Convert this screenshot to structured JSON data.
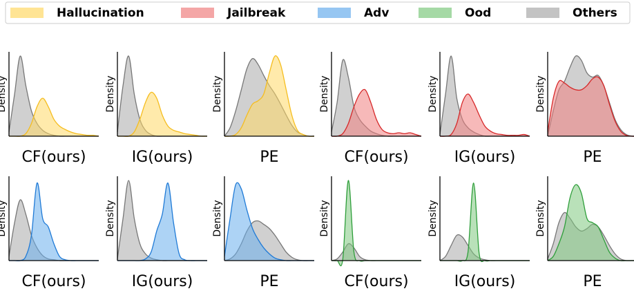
{
  "chart_data": [
    {
      "type": "area",
      "xlabel": "CF(ours)",
      "ylabel": "Density",
      "xlim": [
        0,
        16
      ],
      "ylim": [
        0,
        1
      ],
      "x": [
        0,
        1,
        2,
        3,
        4,
        5,
        6,
        7,
        8,
        9,
        10,
        11,
        12,
        13,
        14,
        15,
        16
      ],
      "series": [
        {
          "name": "Hallucination",
          "color": "#f5bd1f",
          "fill": "#ffd966",
          "values": [
            0,
            0,
            0,
            0.03,
            0.15,
            0.35,
            0.45,
            0.35,
            0.2,
            0.12,
            0.08,
            0.05,
            0.03,
            0.02,
            0.01,
            0.01,
            0
          ]
        },
        {
          "name": "Others",
          "color": "#777777",
          "fill": "#aaaaaa",
          "values": [
            0.05,
            0.5,
            0.95,
            0.6,
            0.3,
            0.15,
            0.07,
            0.03,
            0.01,
            0,
            0,
            0,
            0,
            0,
            0,
            0,
            0
          ]
        }
      ]
    },
    {
      "type": "area",
      "xlabel": "IG(ours)",
      "ylabel": "Density",
      "xlim": [
        0,
        16
      ],
      "ylim": [
        0,
        1
      ],
      "x": [
        0,
        1,
        2,
        3,
        4,
        5,
        6,
        7,
        8,
        9,
        10,
        11,
        12,
        13,
        14,
        15,
        16
      ],
      "series": [
        {
          "name": "Hallucination",
          "color": "#f5bd1f",
          "fill": "#ffd966",
          "values": [
            0,
            0,
            0,
            0.05,
            0.2,
            0.4,
            0.52,
            0.45,
            0.25,
            0.12,
            0.07,
            0.05,
            0.03,
            0.02,
            0.01,
            0,
            0
          ]
        },
        {
          "name": "Others",
          "color": "#777777",
          "fill": "#aaaaaa",
          "values": [
            0.05,
            0.6,
            0.95,
            0.5,
            0.2,
            0.07,
            0.02,
            0,
            0,
            0,
            0,
            0,
            0,
            0,
            0,
            0,
            0
          ]
        }
      ]
    },
    {
      "type": "area",
      "xlabel": "PE",
      "ylabel": "Density",
      "xlim": [
        0,
        16
      ],
      "ylim": [
        0,
        1
      ],
      "x": [
        0,
        1,
        2,
        3,
        4,
        5,
        6,
        7,
        8,
        9,
        10,
        11,
        12,
        13,
        14,
        15,
        16
      ],
      "series": [
        {
          "name": "Hallucination",
          "color": "#f5bd1f",
          "fill": "#ffd966",
          "values": [
            0,
            0,
            0.02,
            0.1,
            0.25,
            0.38,
            0.42,
            0.5,
            0.75,
            0.95,
            0.85,
            0.55,
            0.25,
            0.07,
            0.02,
            0,
            0
          ]
        },
        {
          "name": "Others",
          "color": "#777777",
          "fill": "#aaaaaa",
          "values": [
            0,
            0.1,
            0.3,
            0.55,
            0.8,
            0.92,
            0.85,
            0.72,
            0.6,
            0.5,
            0.38,
            0.25,
            0.13,
            0.05,
            0.02,
            0,
            0
          ]
        }
      ]
    },
    {
      "type": "area",
      "xlabel": "CF(ours)",
      "ylabel": "Density",
      "xlim": [
        0,
        16
      ],
      "ylim": [
        0,
        1
      ],
      "x": [
        0,
        1,
        2,
        3,
        4,
        5,
        6,
        7,
        8,
        9,
        10,
        11,
        12,
        13,
        14,
        15,
        16
      ],
      "series": [
        {
          "name": "Jailbreak",
          "color": "#d62728",
          "fill": "#f08080",
          "values": [
            0,
            0,
            0.03,
            0.15,
            0.35,
            0.5,
            0.55,
            0.4,
            0.2,
            0.08,
            0.04,
            0.03,
            0.04,
            0.03,
            0.04,
            0.02,
            0
          ]
        },
        {
          "name": "Others",
          "color": "#777777",
          "fill": "#aaaaaa",
          "values": [
            0.05,
            0.4,
            0.9,
            0.7,
            0.35,
            0.2,
            0.12,
            0.06,
            0.03,
            0.01,
            0,
            0,
            0,
            0,
            0,
            0,
            0
          ]
        }
      ]
    },
    {
      "type": "area",
      "xlabel": "IG(ours)",
      "ylabel": "Density",
      "xlim": [
        0,
        16
      ],
      "ylim": [
        0,
        1
      ],
      "x": [
        0,
        1,
        2,
        3,
        4,
        5,
        6,
        7,
        8,
        9,
        10,
        11,
        12,
        13,
        14,
        15,
        16
      ],
      "series": [
        {
          "name": "Jailbreak",
          "color": "#d62728",
          "fill": "#f08080",
          "values": [
            0,
            0,
            0.02,
            0.15,
            0.4,
            0.5,
            0.4,
            0.25,
            0.12,
            0.06,
            0.03,
            0.02,
            0.01,
            0.01,
            0.01,
            0.02,
            0
          ]
        },
        {
          "name": "Others",
          "color": "#777777",
          "fill": "#aaaaaa",
          "values": [
            0.02,
            0.5,
            0.95,
            0.45,
            0.2,
            0.1,
            0.05,
            0.02,
            0,
            0,
            0,
            0,
            0,
            0,
            0,
            0,
            0
          ]
        }
      ]
    },
    {
      "type": "area",
      "xlabel": "PE",
      "ylabel": "Density",
      "xlim": [
        0,
        16
      ],
      "ylim": [
        0,
        1
      ],
      "x": [
        0,
        1,
        2,
        3,
        4,
        5,
        6,
        7,
        8,
        9,
        10,
        11,
        12,
        13,
        14,
        15,
        16
      ],
      "series": [
        {
          "name": "Jailbreak",
          "color": "#d62728",
          "fill": "#f08080",
          "values": [
            0.05,
            0.45,
            0.65,
            0.63,
            0.58,
            0.55,
            0.55,
            0.6,
            0.68,
            0.7,
            0.6,
            0.38,
            0.18,
            0.06,
            0.01,
            0,
            0
          ]
        },
        {
          "name": "Others",
          "color": "#777777",
          "fill": "#aaaaaa",
          "values": [
            0,
            0.3,
            0.55,
            0.65,
            0.82,
            0.95,
            0.9,
            0.75,
            0.7,
            0.72,
            0.6,
            0.4,
            0.2,
            0.08,
            0.02,
            0,
            0
          ]
        }
      ]
    },
    {
      "type": "area",
      "xlabel": "CF(ours)",
      "ylabel": "Density",
      "xlim": [
        0,
        16
      ],
      "ylim": [
        0,
        1
      ],
      "x": [
        0,
        1,
        2,
        3,
        4,
        5,
        6,
        7,
        8,
        9,
        10,
        11,
        12,
        13,
        14,
        15,
        16
      ],
      "series": [
        {
          "name": "Adv",
          "color": "#1f7ad6",
          "fill": "#6aaeec",
          "values": [
            0,
            0,
            0,
            0.05,
            0.3,
            0.92,
            0.5,
            0.4,
            0.2,
            0.05,
            0.01,
            0,
            0,
            0,
            0,
            0,
            0
          ]
        },
        {
          "name": "Others",
          "color": "#777777",
          "fill": "#aaaaaa",
          "values": [
            0.05,
            0.45,
            0.72,
            0.55,
            0.3,
            0.15,
            0.06,
            0.02,
            0.01,
            0,
            0,
            0,
            0,
            0,
            0,
            0,
            0
          ]
        }
      ]
    },
    {
      "type": "area",
      "xlabel": "IG(ours)",
      "ylabel": "Density",
      "xlim": [
        0,
        16
      ],
      "ylim": [
        0,
        1
      ],
      "x": [
        0,
        1,
        2,
        3,
        4,
        5,
        6,
        7,
        8,
        9,
        10,
        11,
        12,
        13,
        14,
        15,
        16
      ],
      "series": [
        {
          "name": "Adv",
          "color": "#1f7ad6",
          "fill": "#6aaeec",
          "values": [
            0,
            0,
            0,
            0,
            0,
            0.02,
            0.1,
            0.35,
            0.55,
            0.92,
            0.45,
            0.08,
            0.01,
            0,
            0,
            0,
            0
          ]
        },
        {
          "name": "Others",
          "color": "#777777",
          "fill": "#aaaaaa",
          "values": [
            0.02,
            0.5,
            0.95,
            0.5,
            0.2,
            0.08,
            0.03,
            0.01,
            0,
            0,
            0,
            0,
            0,
            0,
            0,
            0,
            0
          ]
        }
      ]
    },
    {
      "type": "area",
      "xlabel": "PE",
      "ylabel": "Density",
      "xlim": [
        0,
        16
      ],
      "ylim": [
        0,
        1
      ],
      "x": [
        0,
        1,
        2,
        3,
        4,
        5,
        6,
        7,
        8,
        9,
        10,
        11,
        12,
        13,
        14,
        15,
        16
      ],
      "series": [
        {
          "name": "Adv",
          "color": "#1f7ad6",
          "fill": "#6aaeec",
          "values": [
            0.05,
            0.5,
            0.9,
            0.85,
            0.6,
            0.38,
            0.25,
            0.15,
            0.08,
            0.03,
            0.01,
            0,
            0,
            0,
            0,
            0,
            0
          ]
        },
        {
          "name": "Others",
          "color": "#777777",
          "fill": "#aaaaaa",
          "values": [
            0,
            0.02,
            0.08,
            0.2,
            0.35,
            0.45,
            0.47,
            0.43,
            0.38,
            0.3,
            0.2,
            0.1,
            0.04,
            0.01,
            0,
            0,
            0
          ]
        }
      ]
    },
    {
      "type": "area",
      "xlabel": "CF(ours)",
      "ylabel": "Density",
      "xlim": [
        0,
        16
      ],
      "ylim": [
        0,
        1
      ],
      "x": [
        0,
        1,
        2,
        3,
        4,
        5,
        6,
        7,
        8,
        9,
        10,
        11,
        12,
        13,
        14,
        15,
        16
      ],
      "series": [
        {
          "name": "Ood",
          "color": "#2e9e3a",
          "fill": "#7fc97f",
          "values": [
            0,
            0,
            0.01,
            0.95,
            0.1,
            0,
            0,
            0,
            0,
            0,
            0,
            0,
            0,
            0,
            0,
            0,
            0
          ]
        },
        {
          "name": "Others",
          "color": "#777777",
          "fill": "#aaaaaa",
          "values": [
            0,
            0.02,
            0.1,
            0.2,
            0.15,
            0.05,
            0.01,
            0,
            0,
            0,
            0,
            0,
            0,
            0,
            0,
            0,
            0
          ]
        }
      ]
    },
    {
      "type": "area",
      "xlabel": "IG(ours)",
      "ylabel": "Density",
      "xlim": [
        0,
        16
      ],
      "ylim": [
        0,
        1
      ],
      "x": [
        0,
        1,
        2,
        3,
        4,
        5,
        6,
        7,
        8,
        9,
        10,
        11,
        12,
        13,
        14,
        15,
        16
      ],
      "series": [
        {
          "name": "Ood",
          "color": "#2e9e3a",
          "fill": "#7fc97f",
          "values": [
            0,
            0,
            0,
            0,
            0,
            0.1,
            0.92,
            0.08,
            0,
            0,
            0,
            0,
            0,
            0,
            0,
            0,
            0
          ]
        },
        {
          "name": "Others",
          "color": "#777777",
          "fill": "#aaaaaa",
          "values": [
            0,
            0.05,
            0.18,
            0.3,
            0.28,
            0.18,
            0.08,
            0.03,
            0.01,
            0,
            0,
            0,
            0,
            0,
            0,
            0,
            0
          ]
        }
      ]
    },
    {
      "type": "area",
      "xlabel": "PE",
      "ylabel": "Density",
      "xlim": [
        0,
        16
      ],
      "ylim": [
        0,
        1
      ],
      "x": [
        0,
        1,
        2,
        3,
        4,
        5,
        6,
        7,
        8,
        9,
        10,
        11,
        12,
        13,
        14,
        15,
        16
      ],
      "series": [
        {
          "name": "Ood",
          "color": "#2e9e3a",
          "fill": "#7fc97f",
          "values": [
            0,
            0.05,
            0.2,
            0.4,
            0.75,
            0.9,
            0.8,
            0.5,
            0.45,
            0.4,
            0.25,
            0.1,
            0.03,
            0,
            0,
            0,
            0
          ]
        },
        {
          "name": "Others",
          "color": "#777777",
          "fill": "#aaaaaa",
          "values": [
            0.02,
            0.2,
            0.45,
            0.57,
            0.5,
            0.4,
            0.35,
            0.38,
            0.43,
            0.4,
            0.3,
            0.18,
            0.08,
            0.02,
            0,
            0,
            0
          ]
        }
      ]
    }
  ]
}
